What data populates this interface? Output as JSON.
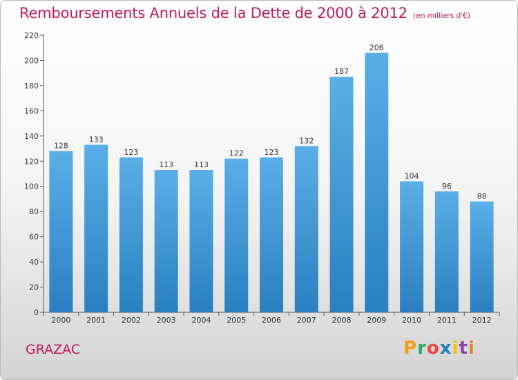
{
  "chart_data": {
    "type": "bar",
    "title": "Remboursements Annuels de la Dette de 2000 à 2012",
    "unit_note": "(en milliers d'€)",
    "categories": [
      "2000",
      "2001",
      "2002",
      "2003",
      "2004",
      "2005",
      "2006",
      "2007",
      "2008",
      "2009",
      "2010",
      "2011",
      "2012"
    ],
    "values": [
      128,
      133,
      123,
      113,
      113,
      122,
      123,
      132,
      187,
      206,
      104,
      96,
      88
    ],
    "ylim": [
      0,
      220
    ],
    "yticks": [
      0,
      20,
      40,
      60,
      80,
      100,
      120,
      140,
      160,
      180,
      200,
      220
    ],
    "grid": false,
    "bar_color_top": "#5aafe8",
    "bar_color_bottom": "#2a7fc0"
  },
  "footer": {
    "city": "GRAZAC",
    "logo_text": "Proxiti",
    "logo_colors": [
      "#f39c12",
      "#27ae60",
      "#e74c3c",
      "#2980b9",
      "#f1c40f",
      "#8e44ad",
      "#e67e22"
    ]
  }
}
